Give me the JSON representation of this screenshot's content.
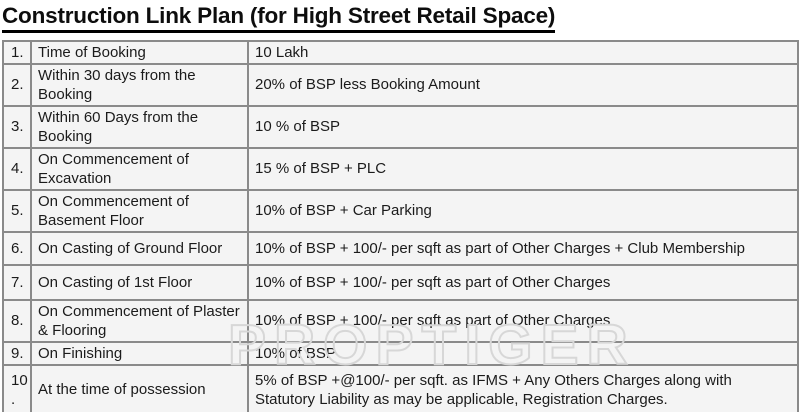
{
  "title": "Construction Link Plan (for High Street Retail Space)",
  "watermark": "PROPTIGER",
  "colors": {
    "cell_background": "#f4f4f4",
    "border": "#8a8a8a",
    "text": "#1b1b1b",
    "title_text": "#0d0d0d",
    "watermark_outline": "#d7d7d7"
  },
  "table": {
    "rows": [
      {
        "num": "1.",
        "milestone": "Time of Booking",
        "payment": "10 Lakh"
      },
      {
        "num": "2.",
        "milestone": "Within 30 days from the Booking",
        "payment": "20% of BSP less Booking Amount"
      },
      {
        "num": "3.",
        "milestone": "Within 60 Days from the Booking",
        "payment": "10 % of BSP"
      },
      {
        "num": "4.",
        "milestone": "On Commencement of Excavation",
        "payment": "15 % of BSP + PLC"
      },
      {
        "num": "5.",
        "milestone": "On Commencement of Basement Floor",
        "payment": "10% of BSP + Car Parking"
      },
      {
        "num": "6.",
        "milestone": "On Casting of Ground Floor",
        "payment": "10% of BSP + 100/- per sqft as part of Other Charges + Club Membership"
      },
      {
        "num": "7.",
        "milestone": "On Casting of 1st Floor",
        "payment": "10% of BSP + 100/- per sqft as part of Other Charges"
      },
      {
        "num": "8.",
        "milestone": "On Commencement of Plaster & Flooring",
        "payment": "10% of BSP + 100/- per sqft as part of Other Charges"
      },
      {
        "num": "9.",
        "milestone": "On Finishing",
        "payment": "10% of BSP"
      },
      {
        "num": "10 .",
        "milestone": "At the time of possession",
        "payment": "5% of BSP +@100/- per sqft. as IFMS + Any Others Charges along with Statutory Liability as may be applicable, Registration Charges."
      }
    ]
  }
}
